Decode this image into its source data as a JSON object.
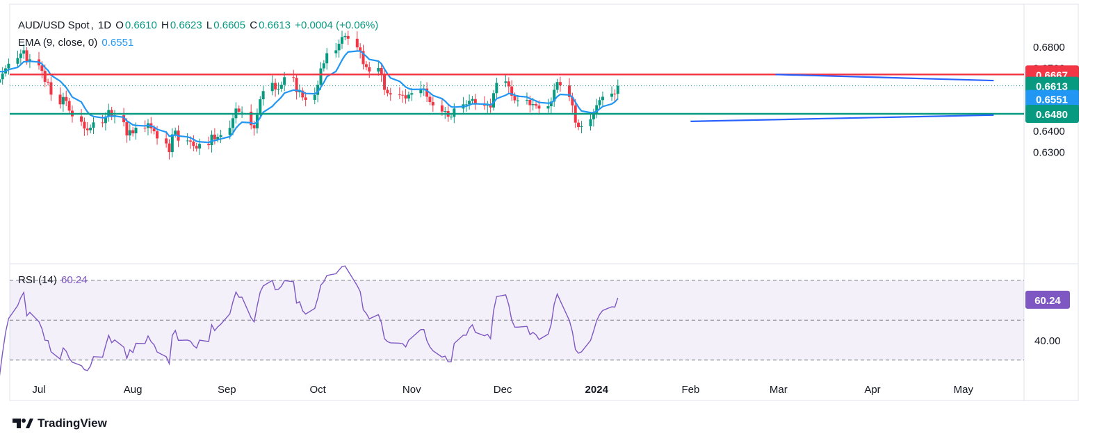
{
  "header": {
    "symbol": "AUD/USD Spot",
    "interval": "1D",
    "open_label": "O",
    "open": "0.6610",
    "high_label": "H",
    "high": "0.6623",
    "low_label": "L",
    "low": "0.6605",
    "close_label": "C",
    "close": "0.6613",
    "change": "+0.0004 (+0.06%)",
    "ema_label": "EMA (9, close, 0)",
    "ema_value": "0.6551",
    "rsi_label": "RSI (14)",
    "rsi_value": "60.24"
  },
  "footer": {
    "brand": "TradingView"
  },
  "colors": {
    "up": "#089981",
    "down": "#f23645",
    "ema": "#2196f3",
    "resistance": "#f23645",
    "support": "#089981",
    "trendline": "#2962ff",
    "rsi": "#7e57c2"
  },
  "chart_data": {
    "type": "candlestick",
    "price_axis": {
      "ticks": [
        "0.6800",
        "0.6700",
        "0.6500",
        "0.6400",
        "0.6300"
      ],
      "range": [
        0.628,
        0.687
      ]
    },
    "time_axis": {
      "labels": [
        "Jul",
        "Aug",
        "Sep",
        "Oct",
        "Nov",
        "Dec",
        "2024",
        "Feb",
        "Mar",
        "Apr",
        "May"
      ]
    },
    "price_badges": [
      {
        "label": "0.6667",
        "value": 0.6667,
        "color": "#f23645",
        "type": "resistance"
      },
      {
        "label": "0.6613",
        "value": 0.6613,
        "color": "#089981",
        "type": "last"
      },
      {
        "label": "0.6551",
        "value": 0.6551,
        "color": "#2196f3",
        "type": "ema"
      },
      {
        "label": "0.6480",
        "value": 0.648,
        "color": "#089981",
        "type": "support"
      }
    ],
    "horizontal_lines": [
      {
        "value": 0.6667,
        "color": "#f23645"
      },
      {
        "value": 0.648,
        "color": "#089981"
      }
    ],
    "trendlines": [
      {
        "from": [
          "2024-02-10",
          0.6444
        ],
        "to": [
          "2024-05-20",
          0.6474
        ]
      },
      {
        "from": [
          "2024-03-09",
          0.6667
        ],
        "to": [
          "2024-05-20",
          0.6638
        ]
      }
    ],
    "close_series": [
      0.6715,
      0.6674,
      0.6628,
      0.6644,
      0.6672,
      0.6696,
      0.6718,
      0.6745,
      0.6766,
      0.6782,
      0.6728,
      0.6739,
      0.671,
      0.6684,
      0.6632,
      0.663,
      0.6571,
      0.6525,
      0.656,
      0.6541,
      0.6495,
      0.6468,
      0.6442,
      0.641,
      0.6402,
      0.6414,
      0.6439,
      0.6436,
      0.6467,
      0.6498,
      0.6465,
      0.6473,
      0.644,
      0.6377,
      0.6402,
      0.6387,
      0.6414,
      0.6413,
      0.6435,
      0.6411,
      0.6397,
      0.6363,
      0.6339,
      0.6298,
      0.6382,
      0.64,
      0.6352,
      0.6353,
      0.6348,
      0.6327,
      0.6315,
      0.6337,
      0.6331,
      0.6381,
      0.6359,
      0.6371,
      0.6379,
      0.6413,
      0.6459,
      0.6505,
      0.649,
      0.649,
      0.6426,
      0.6411,
      0.6475,
      0.6549,
      0.6588,
      0.6627,
      0.6596,
      0.6599,
      0.6618,
      0.6654,
      0.6651,
      0.6583,
      0.659,
      0.6558,
      0.6546,
      0.657,
      0.6618,
      0.6696,
      0.672,
      0.6768,
      0.6782,
      0.6813,
      0.6845,
      0.685,
      0.6837,
      0.6796,
      0.6778,
      0.6716,
      0.6702,
      0.6681,
      0.6698,
      0.6667,
      0.6594,
      0.6578,
      0.6572,
      0.657,
      0.6568,
      0.6553,
      0.6571,
      0.6578,
      0.66,
      0.66,
      0.6561,
      0.6536,
      0.652,
      0.6491,
      0.6493,
      0.6466,
      0.6466,
      0.6505,
      0.6525,
      0.6525,
      0.6542,
      0.655,
      0.6529,
      0.6519,
      0.6522,
      0.651,
      0.6578,
      0.6627,
      0.6634,
      0.661,
      0.6566,
      0.6544,
      0.6544,
      0.6546,
      0.6521,
      0.6526,
      0.6519,
      0.6505,
      0.6516,
      0.6538,
      0.6594,
      0.6631,
      0.6615,
      0.656,
      0.652,
      0.6438,
      0.6417,
      0.6421,
      0.6454,
      0.6484,
      0.6521,
      0.6545,
      0.6561,
      0.6576,
      0.6575,
      0.6613
    ]
  }
}
